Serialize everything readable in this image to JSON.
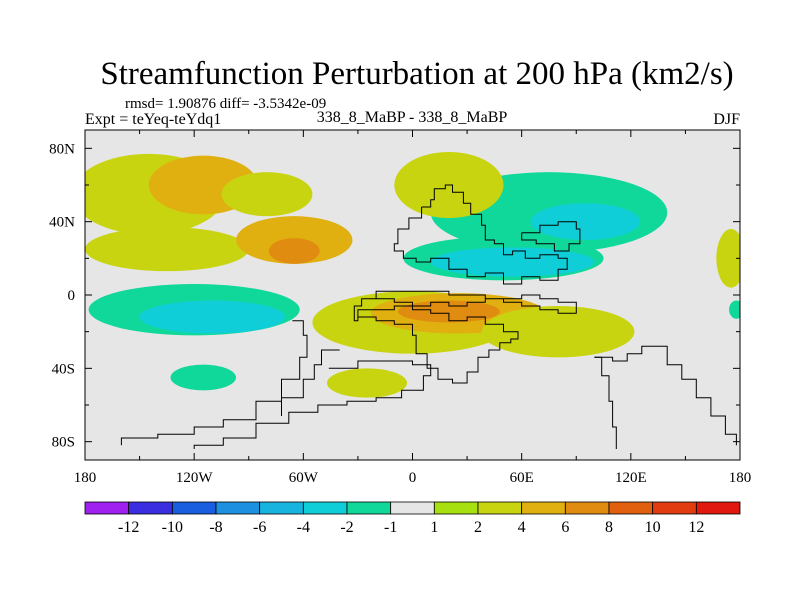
{
  "chart_data": {
    "type": "heatmap",
    "title": "Streamfunction Perturbation at 200 hPa (km2/s)",
    "stats_text": "rmsd= 1.90876 diff= -3.5342e-09",
    "left_label": "Expt = teYeq-teYdq1",
    "center_label": "338_8_MaBP - 338_8_MaBP",
    "right_label": "DJF",
    "x_axis": {
      "range": [
        -180,
        180
      ],
      "ticks": [
        {
          "value": -180,
          "label": "180"
        },
        {
          "value": -120,
          "label": "120W"
        },
        {
          "value": -60,
          "label": "60W"
        },
        {
          "value": 0,
          "label": "0"
        },
        {
          "value": 60,
          "label": "60E"
        },
        {
          "value": 120,
          "label": "120E"
        },
        {
          "value": 180,
          "label": "180"
        }
      ]
    },
    "y_axis": {
      "range": [
        -90,
        90
      ],
      "ticks": [
        {
          "value": 80,
          "label": "80N"
        },
        {
          "value": 40,
          "label": "40N"
        },
        {
          "value": 0,
          "label": "0"
        },
        {
          "value": -40,
          "label": "40S"
        },
        {
          "value": -80,
          "label": "80S"
        }
      ]
    },
    "colorbar": {
      "labels": [
        "-12",
        "-10",
        "-8",
        "-6",
        "-4",
        "-2",
        "-1",
        "1",
        "2",
        "4",
        "6",
        "8",
        "10",
        "12"
      ],
      "colors": [
        "#a020f0",
        "#3a2ee0",
        "#1a5ee0",
        "#1e90e0",
        "#18b4e0",
        "#10ced8",
        "#10d89a",
        "#e6e6e6",
        "#a6e010",
        "#c8d410",
        "#e0b010",
        "#e08c10",
        "#e06010",
        "#e03c10",
        "#e01810"
      ]
    },
    "field_blobs": [
      {
        "lon": -135,
        "lat": 25,
        "rlon": 45,
        "rlat": 12,
        "level": 2
      },
      {
        "lon": -145,
        "lat": 55,
        "rlon": 42,
        "rlat": 22,
        "level": 2
      },
      {
        "lon": -115,
        "lat": 60,
        "rlon": 30,
        "rlat": 16,
        "level": 4
      },
      {
        "lon": -80,
        "lat": 55,
        "rlon": 25,
        "rlat": 12,
        "level": 2
      },
      {
        "lon": -65,
        "lat": 30,
        "rlon": 32,
        "rlat": 13,
        "level": 4
      },
      {
        "lon": -65,
        "lat": 24,
        "rlon": 14,
        "rlat": 7,
        "level": 6
      },
      {
        "lon": -120,
        "lat": -8,
        "rlon": 58,
        "rlat": 14,
        "level": -2
      },
      {
        "lon": -110,
        "lat": -12,
        "rlon": 40,
        "rlat": 9,
        "level": -4
      },
      {
        "lon": -115,
        "lat": -45,
        "rlon": 18,
        "rlat": 7,
        "level": -2
      },
      {
        "lon": -25,
        "lat": -48,
        "rlon": 22,
        "rlat": 8,
        "level": 2
      },
      {
        "lon": 0,
        "lat": -15,
        "rlon": 55,
        "rlat": 17,
        "level": 2
      },
      {
        "lon": 25,
        "lat": -10,
        "rlon": 48,
        "rlat": 11,
        "level": 4
      },
      {
        "lon": 20,
        "lat": -9,
        "rlon": 28,
        "rlat": 6,
        "level": 6
      },
      {
        "lon": 80,
        "lat": -20,
        "rlon": 42,
        "rlat": 14,
        "level": 2
      },
      {
        "lon": 75,
        "lat": 45,
        "rlon": 65,
        "rlat": 22,
        "level": -2
      },
      {
        "lon": 50,
        "lat": 20,
        "rlon": 55,
        "rlat": 12,
        "level": -2
      },
      {
        "lon": 55,
        "lat": 18,
        "rlon": 45,
        "rlat": 8,
        "level": -4
      },
      {
        "lon": 95,
        "lat": 40,
        "rlon": 30,
        "rlat": 10,
        "level": -4
      },
      {
        "lon": 20,
        "lat": 60,
        "rlon": 30,
        "rlat": 18,
        "level": 2
      },
      {
        "lon": 175,
        "lat": 20,
        "rlon": 8,
        "rlat": 16,
        "level": 2
      },
      {
        "lon": 178,
        "lat": -8,
        "rlon": 4,
        "rlat": 5,
        "level": -2
      }
    ]
  }
}
